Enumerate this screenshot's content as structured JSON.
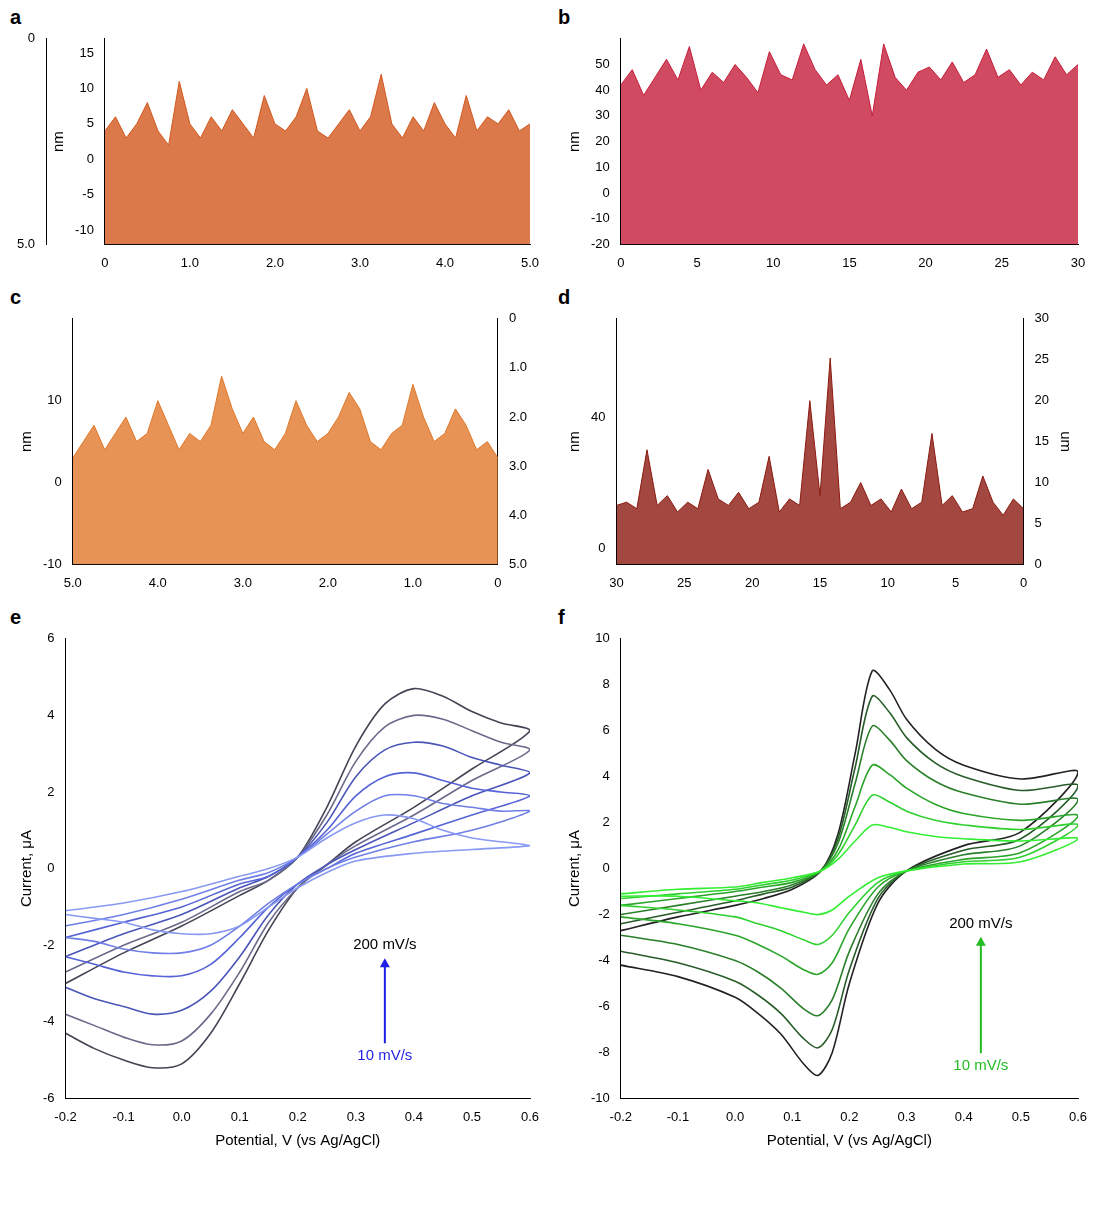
{
  "chart_data": [
    {
      "type": "area",
      "label": "a",
      "color": "#d2571e",
      "grid": false,
      "tick_labels": true,
      "ylabel": "nm",
      "x": [
        0,
        0.125,
        0.25,
        0.375,
        0.5,
        0.625,
        0.75,
        0.875,
        1,
        1.125,
        1.25,
        1.375,
        1.5,
        1.625,
        1.75,
        1.875,
        2,
        2.125,
        2.25,
        2.375,
        2.5,
        2.625,
        2.75,
        2.875,
        3,
        3.125,
        3.25,
        3.375,
        3.5,
        3.625,
        3.75,
        3.875,
        4,
        4.125,
        4.25,
        4.375,
        4.5,
        4.625,
        4.75,
        4.875,
        5
      ],
      "values": [
        4,
        6,
        3,
        5,
        8,
        4,
        2,
        11,
        5,
        3,
        6,
        4,
        7,
        5,
        3,
        9,
        5,
        4,
        6,
        10,
        4,
        3,
        5,
        7,
        4,
        6,
        12,
        5,
        3,
        6,
        4,
        8,
        5,
        3,
        9,
        4,
        6,
        5,
        7,
        4,
        5
      ],
      "xlim": [
        0,
        5
      ],
      "xticks": [
        0,
        {
          "value": 1,
          "label": "1.0"
        },
        {
          "value": 2,
          "label": "2.0"
        },
        {
          "value": 3,
          "label": "3.0"
        },
        {
          "value": 4,
          "label": "4.0"
        },
        {
          "value": 5,
          "label": "5.0"
        }
      ],
      "ylim": [
        -12,
        17
      ],
      "yticks": [
        -10,
        -5,
        0,
        5,
        10,
        15
      ],
      "y2lim": [
        5,
        0
      ],
      "y2ticks": [
        0,
        {
          "value": 5,
          "label": "5.0"
        }
      ]
    },
    {
      "type": "area",
      "label": "b",
      "color": "#c41e3a",
      "grid": false,
      "tick_labels": true,
      "ylabel": "nm",
      "x": [
        0,
        0.75,
        1.5,
        2.25,
        3,
        3.75,
        4.5,
        5.25,
        6,
        6.75,
        7.5,
        8.25,
        9,
        9.75,
        10.5,
        11.25,
        12,
        12.75,
        13.5,
        14.25,
        15,
        15.75,
        16.5,
        17.25,
        18,
        18.75,
        19.5,
        20.25,
        21,
        21.75,
        22.5,
        23.25,
        24,
        24.75,
        25.5,
        26.25,
        27,
        27.75,
        28.5,
        29.25,
        30
      ],
      "values": [
        42,
        48,
        38,
        45,
        52,
        44,
        57,
        40,
        47,
        43,
        50,
        45,
        39,
        55,
        46,
        44,
        58,
        48,
        42,
        46,
        36,
        52,
        30,
        58,
        45,
        40,
        47,
        49,
        44,
        51,
        43,
        46,
        56,
        45,
        48,
        42,
        47,
        44,
        53,
        46,
        50
      ],
      "xlim": [
        0,
        30
      ],
      "xticks": [
        0,
        5,
        10,
        15,
        20,
        25,
        30
      ],
      "ylim": [
        -20,
        60
      ],
      "yticks": [
        -20,
        -10,
        0,
        10,
        20,
        30,
        40,
        50
      ]
    },
    {
      "type": "area",
      "label": "c",
      "color": "#e0782a",
      "grid": false,
      "tick_labels": true,
      "ylabel": "nm",
      "x": [
        0,
        0.125,
        0.25,
        0.375,
        0.5,
        0.625,
        0.75,
        0.875,
        1,
        1.125,
        1.25,
        1.375,
        1.5,
        1.625,
        1.75,
        1.875,
        2,
        2.125,
        2.25,
        2.375,
        2.5,
        2.625,
        2.75,
        2.875,
        3,
        3.125,
        3.25,
        3.375,
        3.5,
        3.625,
        3.75,
        3.875,
        4,
        4.125,
        4.25,
        4.375,
        4.5,
        4.625,
        4.75,
        4.875,
        5
      ],
      "values": [
        3,
        5,
        4,
        7,
        9,
        6,
        5,
        8,
        12,
        7,
        6,
        4,
        5,
        9,
        11,
        8,
        6,
        5,
        7,
        10,
        6,
        4,
        5,
        8,
        6,
        9,
        13,
        7,
        5,
        6,
        4,
        7,
        10,
        6,
        5,
        8,
        6,
        4,
        7,
        5,
        3
      ],
      "xlim": [
        5,
        0
      ],
      "xticks": [
        {
          "value": 5,
          "label": "5.0"
        },
        {
          "value": 4,
          "label": "4.0"
        },
        {
          "value": 3,
          "label": "3.0"
        },
        {
          "value": 2,
          "label": "2.0"
        },
        {
          "value": 1,
          "label": "1.0"
        },
        0
      ],
      "ylim": [
        -10,
        20
      ],
      "yticks": [
        -10,
        0,
        10
      ],
      "y2lim": [
        5,
        0
      ],
      "y2ticks": [
        0,
        {
          "value": 1,
          "label": "1.0"
        },
        {
          "value": 2,
          "label": "2.0"
        },
        {
          "value": 3,
          "label": "3.0"
        },
        {
          "value": 4,
          "label": "4.0"
        },
        {
          "value": 5,
          "label": "5.0"
        }
      ]
    },
    {
      "type": "area",
      "label": "d",
      "color": "#8b1a10",
      "grid": false,
      "tick_labels": true,
      "ylabel": "nm",
      "y2label": "um",
      "x": [
        0,
        0.75,
        1.5,
        2.25,
        3,
        3.75,
        4.5,
        5.25,
        6,
        6.75,
        7.5,
        8.25,
        9,
        9.75,
        10.5,
        11.25,
        12,
        12.75,
        13.5,
        14.25,
        15,
        15.75,
        16.5,
        17.25,
        18,
        18.75,
        19.5,
        20.25,
        21,
        21.75,
        22.5,
        23.25,
        24,
        24.75,
        25.5,
        26.25,
        27,
        27.75,
        28.5,
        29.25,
        30
      ],
      "values": [
        12,
        15,
        10,
        14,
        22,
        12,
        11,
        16,
        13,
        35,
        14,
        12,
        18,
        11,
        15,
        13,
        20,
        14,
        12,
        58,
        16,
        45,
        13,
        15,
        11,
        28,
        14,
        12,
        17,
        13,
        15,
        24,
        12,
        14,
        11,
        16,
        13,
        30,
        12,
        14,
        13
      ],
      "xlim": [
        30,
        0
      ],
      "xticks": [
        30,
        25,
        20,
        15,
        10,
        5,
        0
      ],
      "ylim": [
        -5,
        70
      ],
      "yticks": [
        0,
        40
      ],
      "y2lim": [
        0,
        30
      ],
      "y2ticks": [
        0,
        5,
        10,
        15,
        20,
        25,
        30
      ]
    },
    {
      "type": "line",
      "label": "e",
      "grid": false,
      "legend": false,
      "xlabel": "Potential, V (vs Ag/AgCl)",
      "ylabel": "Current, μA",
      "x": [
        -0.2,
        -0.1,
        0,
        0.1,
        0.15,
        0.2,
        0.25,
        0.3,
        0.35,
        0.4,
        0.45,
        0.5,
        0.55,
        0.6,
        0.5,
        0.4,
        0.3,
        0.25,
        0.2,
        0.15,
        0.1,
        0.05,
        0,
        -0.05,
        -0.1,
        -0.15,
        -0.2
      ],
      "series": [
        {
          "color": "#8899f2",
          "values": [
            -1.1,
            -0.9,
            -0.6,
            -0.2,
            0,
            0.3,
            0.8,
            1.2,
            1.4,
            1.3,
            1.0,
            0.8,
            0.7,
            0.6,
            0.5,
            0.4,
            0.2,
            -0.1,
            -0.5,
            -1.0,
            -1.5,
            -1.7,
            -1.7,
            -1.6,
            -1.4,
            -1.3,
            -1.2
          ]
        },
        {
          "color": "#6f7fe6",
          "values": [
            -1.5,
            -1.2,
            -0.8,
            -0.3,
            -0.1,
            0.3,
            0.9,
            1.5,
            1.9,
            1.9,
            1.7,
            1.6,
            1.5,
            1.5,
            1.0,
            0.7,
            0.3,
            0,
            -0.4,
            -0.9,
            -1.5,
            -2.0,
            -2.2,
            -2.2,
            -2.1,
            -1.9,
            -1.8
          ]
        },
        {
          "color": "#5563d6",
          "values": [
            -1.8,
            -1.4,
            -1.0,
            -0.4,
            -0.2,
            0.3,
            1.0,
            1.9,
            2.4,
            2.5,
            2.3,
            2.1,
            2.0,
            1.9,
            1.4,
            0.9,
            0.4,
            0,
            -0.4,
            -1.0,
            -1.8,
            -2.5,
            -2.8,
            -2.8,
            -2.7,
            -2.5,
            -2.3
          ]
        },
        {
          "color": "#4a55b8",
          "values": [
            -2.3,
            -1.7,
            -1.2,
            -0.5,
            -0.2,
            0.3,
            1.2,
            2.4,
            3.1,
            3.3,
            3.2,
            2.9,
            2.7,
            2.5,
            1.9,
            1.2,
            0.5,
            0.1,
            -0.4,
            -1.2,
            -2.3,
            -3.2,
            -3.7,
            -3.8,
            -3.6,
            -3.4,
            -3.1
          ]
        },
        {
          "color": "#6a6a8a",
          "values": [
            -2.7,
            -2.0,
            -1.4,
            -0.6,
            -0.3,
            0.3,
            1.4,
            2.8,
            3.7,
            4.0,
            3.9,
            3.6,
            3.3,
            3.1,
            2.3,
            1.4,
            0.6,
            0.1,
            -0.5,
            -1.4,
            -2.7,
            -3.8,
            -4.5,
            -4.6,
            -4.4,
            -4.1,
            -3.8
          ]
        },
        {
          "color": "#444455",
          "values": [
            -3.0,
            -2.2,
            -1.5,
            -0.7,
            -0.3,
            0.3,
            1.6,
            3.2,
            4.3,
            4.7,
            4.5,
            4.1,
            3.8,
            3.6,
            2.6,
            1.6,
            0.7,
            0.1,
            -0.5,
            -1.6,
            -3.0,
            -4.3,
            -5.1,
            -5.2,
            -5.0,
            -4.7,
            -4.3
          ]
        }
      ],
      "xlim": [
        -0.2,
        0.6
      ],
      "xticks": [
        -0.2,
        -0.1,
        {
          "value": 0,
          "label": "0.0"
        },
        0.1,
        0.2,
        0.3,
        0.4,
        0.5,
        0.6
      ],
      "ylim": [
        -6,
        6
      ],
      "yticks": [
        -6,
        -4,
        -2,
        0,
        2,
        4,
        6
      ],
      "annotations": [
        {
          "text": "200 mV/s",
          "x": 0.35,
          "y": -2.0,
          "color": "#000000"
        },
        {
          "text": "10 mV/s",
          "x": 0.35,
          "y": -4.9,
          "color": "#1f1fe6"
        }
      ]
    },
    {
      "type": "line",
      "label": "f",
      "grid": false,
      "legend": false,
      "xlabel": "Potential, V (vs Ag/AgCl)",
      "ylabel": "Current, μA",
      "x": [
        -0.2,
        -0.1,
        0,
        0.05,
        0.1,
        0.15,
        0.18,
        0.21,
        0.24,
        0.27,
        0.3,
        0.35,
        0.4,
        0.5,
        0.6,
        0.5,
        0.4,
        0.3,
        0.25,
        0.2,
        0.17,
        0.145,
        0.12,
        0.08,
        0.04,
        0,
        -0.1,
        -0.2
      ],
      "series": [
        {
          "color": "#33ee33",
          "values": [
            -1.1,
            -0.9,
            -0.8,
            -0.6,
            -0.4,
            -0.1,
            0.4,
            1.2,
            1.9,
            1.8,
            1.6,
            1.4,
            1.3,
            1.2,
            1.3,
            0.3,
            0.2,
            -0.1,
            -0.4,
            -1.2,
            -1.8,
            -2.0,
            -1.9,
            -1.7,
            -1.5,
            -1.4,
            -1.2,
            -1.2
          ]
        },
        {
          "color": "#2fd02f",
          "values": [
            -1.3,
            -1.1,
            -0.9,
            -0.7,
            -0.5,
            -0.1,
            0.6,
            1.9,
            3.2,
            2.9,
            2.5,
            2.1,
            1.9,
            1.7,
            1.9,
            0.5,
            0.3,
            -0.1,
            -0.6,
            -1.9,
            -2.9,
            -3.3,
            -3.1,
            -2.7,
            -2.4,
            -2.1,
            -1.8,
            -1.6
          ]
        },
        {
          "color": "#2aa52a",
          "values": [
            -1.6,
            -1.3,
            -1.0,
            -0.8,
            -0.6,
            -0.1,
            0.8,
            2.7,
            4.5,
            4.1,
            3.5,
            2.8,
            2.4,
            2.1,
            2.3,
            0.7,
            0.4,
            -0.1,
            -0.8,
            -2.6,
            -4.1,
            -4.6,
            -4.4,
            -3.8,
            -3.3,
            -2.9,
            -2.4,
            -2.1
          ]
        },
        {
          "color": "#2a7f2a",
          "values": [
            -2.0,
            -1.6,
            -1.2,
            -1.0,
            -0.7,
            -0.1,
            1.1,
            3.7,
            6.2,
            5.6,
            4.7,
            3.8,
            3.3,
            2.8,
            3.0,
            1.0,
            0.6,
            -0.1,
            -1.1,
            -3.6,
            -5.7,
            -6.4,
            -6.1,
            -5.2,
            -4.5,
            -4.0,
            -3.3,
            -2.9
          ]
        },
        {
          "color": "#285c28",
          "values": [
            -2.4,
            -1.9,
            -1.4,
            -1.1,
            -0.8,
            -0.1,
            1.3,
            4.4,
            7.5,
            6.8,
            5.7,
            4.6,
            4.0,
            3.4,
            3.6,
            1.3,
            0.8,
            -0.1,
            -1.3,
            -4.4,
            -7.0,
            -7.8,
            -7.4,
            -6.3,
            -5.5,
            -4.9,
            -4.1,
            -3.6
          ]
        },
        {
          "color": "#222222",
          "values": [
            -2.7,
            -2.1,
            -1.6,
            -1.3,
            -0.9,
            -0.1,
            1.5,
            5.0,
            8.6,
            7.8,
            6.5,
            5.2,
            4.5,
            3.9,
            4.2,
            1.6,
            1.0,
            -0.1,
            -1.5,
            -5.0,
            -8.0,
            -9.0,
            -8.5,
            -7.2,
            -6.3,
            -5.6,
            -4.7,
            -4.2
          ]
        }
      ],
      "xlim": [
        -0.2,
        0.6
      ],
      "xticks": [
        -0.2,
        -0.1,
        {
          "value": 0,
          "label": "0.0"
        },
        0.1,
        0.2,
        0.3,
        0.4,
        0.5,
        0.6
      ],
      "ylim": [
        -10,
        10
      ],
      "yticks": [
        -10,
        -8,
        -6,
        -4,
        -2,
        0,
        2,
        4,
        6,
        8,
        10
      ],
      "annotations": [
        {
          "text": "200 mV/s",
          "x": 0.43,
          "y": -2.4,
          "color": "#000000"
        },
        {
          "text": "10 mV/s",
          "x": 0.43,
          "y": -8.6,
          "color": "#22bb22"
        }
      ]
    }
  ]
}
